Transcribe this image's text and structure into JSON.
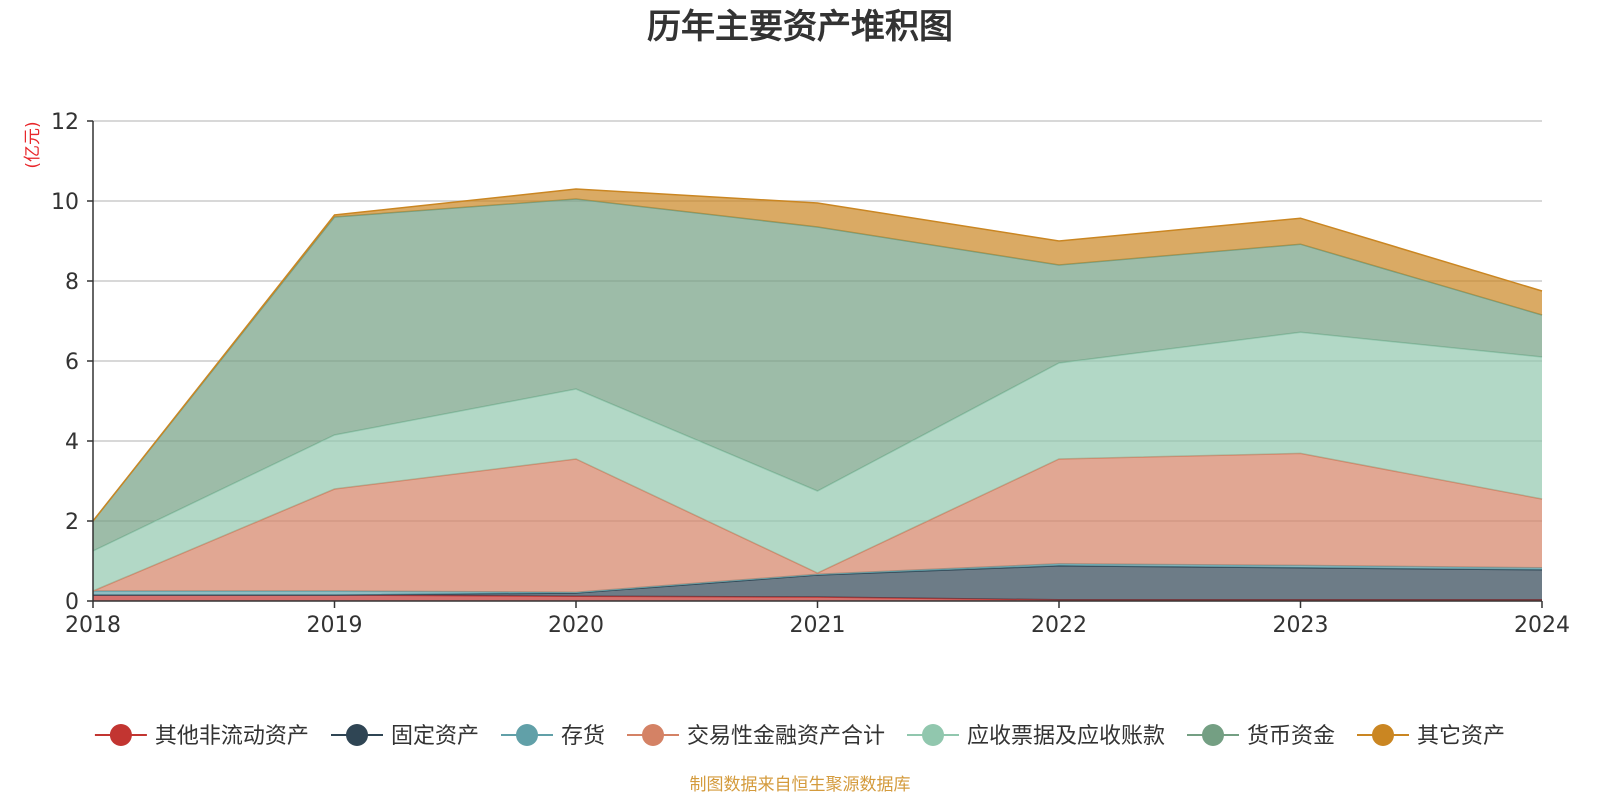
{
  "chart_data": {
    "type": "area",
    "stacked": true,
    "title": "历年主要资产堆积图",
    "unit_label": "(亿元)",
    "source_note": "制图数据来自恒生聚源数据库",
    "x": [
      "2018",
      "2019",
      "2020",
      "2021",
      "2022",
      "2023",
      "2024"
    ],
    "ylim": [
      0,
      12
    ],
    "yticks": [
      "0",
      "2",
      "4",
      "6",
      "8",
      "10",
      "12"
    ],
    "grid": true,
    "legend_position": "bottom",
    "series": [
      {
        "name": "其他非流动资产",
        "color": "#c23531",
        "values": [
          0.15,
          0.15,
          0.12,
          0.1,
          0.03,
          0.03,
          0.03
        ]
      },
      {
        "name": "固定资产",
        "color": "#2f4554",
        "values": [
          0.0,
          0.0,
          0.08,
          0.55,
          0.85,
          0.8,
          0.75
        ]
      },
      {
        "name": "存货",
        "color": "#61a0a8",
        "values": [
          0.1,
          0.1,
          0.02,
          0.02,
          0.05,
          0.06,
          0.05
        ]
      },
      {
        "name": "交易性金融资产合计",
        "color": "#d48265",
        "values": [
          0.0,
          2.55,
          3.33,
          0.03,
          2.62,
          2.8,
          1.72
        ]
      },
      {
        "name": "应收票据及应收账款",
        "color": "#91c7ae",
        "values": [
          1.0,
          1.35,
          1.75,
          2.05,
          2.4,
          3.03,
          3.55
        ]
      },
      {
        "name": "货币资金",
        "color": "#749f83",
        "values": [
          0.75,
          5.45,
          4.75,
          6.6,
          2.45,
          2.2,
          1.05
        ]
      },
      {
        "name": "其它资产",
        "color": "#ca8622",
        "values": [
          0.0,
          0.05,
          0.25,
          0.6,
          0.6,
          0.65,
          0.6
        ]
      }
    ]
  }
}
